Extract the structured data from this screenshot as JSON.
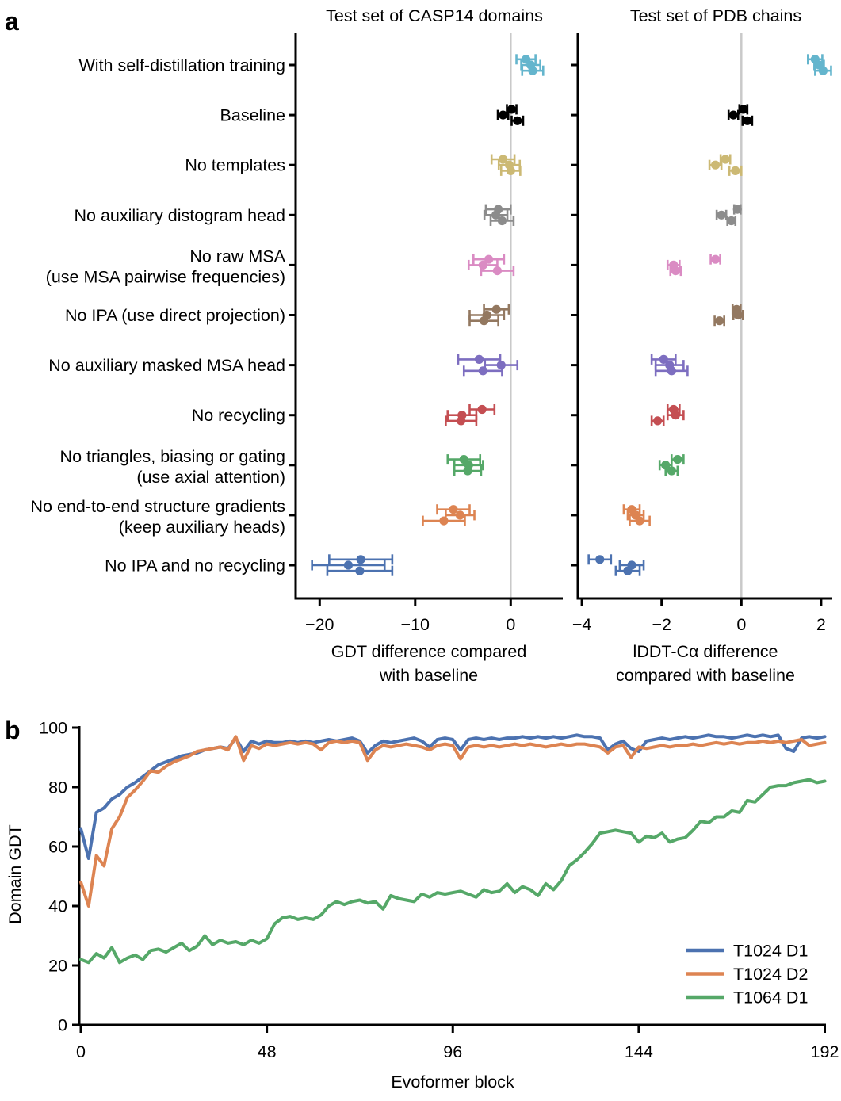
{
  "panels": {
    "a": "a",
    "b": "b"
  },
  "styles": {
    "axis_color": "#000000",
    "zero_line_color": "#c9c9c9",
    "background": "#ffffff"
  },
  "chart_data": [
    {
      "id": "ablation_gdt_casp14",
      "type": "scatter",
      "title": "Test set of CASP14 domains",
      "xlabel": "GDT difference compared with baseline",
      "xlabel_lines": [
        "GDT difference compared",
        "with baseline"
      ],
      "xlim": [
        -22.5,
        5.5
      ],
      "xticks": [
        -20,
        -10,
        0
      ],
      "zero_line": true,
      "seeds_per_row": 3,
      "rows": [
        {
          "label": "With self-distillation training",
          "label_lines": [
            "With self-distillation training"
          ],
          "color": "#64B5CD",
          "values": [
            1.6,
            2.1,
            2.3
          ],
          "errors": [
            1.0,
            1.0,
            1.1
          ]
        },
        {
          "label": "Baseline",
          "label_lines": [
            "Baseline"
          ],
          "color": "#000000",
          "values": [
            0.1,
            -0.8,
            0.7
          ],
          "errors": [
            0.5,
            0.55,
            0.6
          ]
        },
        {
          "label": "No templates",
          "label_lines": [
            "No templates"
          ],
          "color": "#CCB974",
          "values": [
            -0.8,
            -0.15,
            0.0
          ],
          "errors": [
            1.2,
            1.1,
            1.0
          ]
        },
        {
          "label": "No auxiliary distogram head",
          "label_lines": [
            "No auxiliary distogram head"
          ],
          "color": "#8C8C8C",
          "values": [
            -1.3,
            -1.55,
            -0.9
          ],
          "errors": [
            1.3,
            1.2,
            1.2
          ]
        },
        {
          "label": "No raw MSA (use MSA pairwise frequencies)",
          "label_lines": [
            "No raw MSA",
            "(use MSA pairwise frequencies)"
          ],
          "color": "#DA8BC3",
          "values": [
            -2.3,
            -2.9,
            -1.4
          ],
          "errors": [
            1.6,
            1.5,
            1.7
          ]
        },
        {
          "label": "No IPA (use direct projection)",
          "label_lines": [
            "No IPA (use direct projection)"
          ],
          "color": "#937860",
          "values": [
            -1.5,
            -2.5,
            -2.8
          ],
          "errors": [
            1.3,
            1.8,
            1.5
          ]
        },
        {
          "label": "No auxiliary masked MSA head",
          "label_lines": [
            "No auxiliary masked MSA head"
          ],
          "color": "#7D6EC0",
          "values": [
            -3.3,
            -1.0,
            -2.9
          ],
          "errors": [
            2.2,
            1.7,
            2.0
          ]
        },
        {
          "label": "No recycling",
          "label_lines": [
            "No recycling"
          ],
          "color": "#C44E52",
          "values": [
            -3.0,
            -5.1,
            -5.2
          ],
          "errors": [
            1.3,
            1.5,
            1.6
          ]
        },
        {
          "label": "No triangles, biasing or gating (use axial attention)",
          "label_lines": [
            "No triangles, biasing or gating",
            "(use axial attention)"
          ],
          "color": "#55A868",
          "values": [
            -4.9,
            -4.4,
            -4.5
          ],
          "errors": [
            1.7,
            1.5,
            1.4
          ]
        },
        {
          "label": "No end-to-end structure gradients (keep auxiliary heads)",
          "label_lines": [
            "No end-to-end structure gradients",
            "(keep auxiliary heads)"
          ],
          "color": "#DD8452",
          "values": [
            -6.0,
            -5.3,
            -7.0
          ],
          "errors": [
            1.7,
            1.5,
            2.2
          ]
        },
        {
          "label": "No IPA and no recycling",
          "label_lines": [
            "No IPA and no recycling"
          ],
          "color": "#4C72B0",
          "values": [
            -15.7,
            -17.0,
            -15.8
          ],
          "errors": [
            3.3,
            3.8,
            3.4
          ]
        }
      ]
    },
    {
      "id": "ablation_lddt_pdb",
      "type": "scatter",
      "title": "Test set of PDB chains",
      "xlabel": "lDDT-Cα difference compared with baseline",
      "xlabel_lines": [
        "lDDT-Cα difference",
        "compared with baseline"
      ],
      "xlim": [
        -4.45,
        2.3
      ],
      "xticks": [
        -4,
        -2,
        0,
        2
      ],
      "zero_line": true,
      "seeds_per_row": 3,
      "rows": [
        {
          "label": "With self-distillation training",
          "color": "#64B5CD",
          "values": [
            1.85,
            1.95,
            2.05
          ],
          "errors": [
            0.18,
            0.12,
            0.2
          ]
        },
        {
          "label": "Baseline",
          "color": "#000000",
          "values": [
            0.05,
            -0.2,
            0.15
          ],
          "errors": [
            0.1,
            0.12,
            0.12
          ]
        },
        {
          "label": "No templates",
          "color": "#CCB974",
          "values": [
            -0.4,
            -0.65,
            -0.15
          ],
          "errors": [
            0.12,
            0.15,
            0.15
          ]
        },
        {
          "label": "No auxiliary distogram head",
          "color": "#8C8C8C",
          "values": [
            -0.1,
            -0.5,
            -0.25
          ],
          "errors": [
            0.08,
            0.12,
            0.1
          ]
        },
        {
          "label": "No raw MSA (use MSA pairwise frequencies)",
          "color": "#DA8BC3",
          "values": [
            -0.65,
            -1.7,
            -1.65
          ],
          "errors": [
            0.12,
            0.15,
            0.13
          ]
        },
        {
          "label": "No IPA (use direct projection)",
          "color": "#937860",
          "values": [
            -0.12,
            -0.08,
            -0.55
          ],
          "errors": [
            0.1,
            0.12,
            0.12
          ]
        },
        {
          "label": "No auxiliary masked MSA head",
          "color": "#7D6EC0",
          "values": [
            -1.95,
            -1.8,
            -1.75
          ],
          "errors": [
            0.3,
            0.35,
            0.4
          ]
        },
        {
          "label": "No recycling",
          "color": "#C44E52",
          "values": [
            -1.7,
            -1.65,
            -2.1
          ],
          "errors": [
            0.15,
            0.2,
            0.15
          ]
        },
        {
          "label": "No triangles, biasing or gating (use axial attention)",
          "color": "#55A868",
          "values": [
            -1.6,
            -1.9,
            -1.75
          ],
          "errors": [
            0.15,
            0.15,
            0.15
          ]
        },
        {
          "label": "No end-to-end structure gradients (keep auxiliary heads)",
          "color": "#DD8452",
          "values": [
            -2.75,
            -2.65,
            -2.55
          ],
          "errors": [
            0.2,
            0.2,
            0.25
          ]
        },
        {
          "label": "No IPA and no recycling",
          "color": "#4C72B0",
          "values": [
            -3.55,
            -2.75,
            -2.85
          ],
          "errors": [
            0.28,
            0.3,
            0.3
          ]
        }
      ]
    },
    {
      "id": "evoformer_trajectory",
      "type": "line",
      "xlabel": "Evoformer block",
      "ylabel": "Domain GDT",
      "xlim": [
        0,
        192
      ],
      "ylim": [
        0,
        100
      ],
      "xticks": [
        0,
        48,
        96,
        144,
        192
      ],
      "yticks": [
        0,
        20,
        40,
        60,
        80,
        100
      ],
      "legend_position": "lower right",
      "x_start": 0,
      "x_step": 2,
      "series": [
        {
          "name": "T1024 D1",
          "color": "#4C72B0",
          "values": [
            66,
            56,
            71.5,
            73,
            76,
            77.5,
            80,
            81.5,
            83.5,
            85.5,
            87.5,
            88.5,
            89.5,
            90.5,
            91,
            91.5,
            92.5,
            93,
            93.5,
            93,
            96.5,
            92,
            95.5,
            94.5,
            95.5,
            95,
            95,
            95.5,
            95,
            95.5,
            95,
            95.5,
            96,
            95.5,
            96,
            96.5,
            95.5,
            91.5,
            94,
            95.5,
            95,
            95.5,
            96,
            96.5,
            95.5,
            93.5,
            96,
            96.5,
            96,
            92.5,
            96,
            96.5,
            96,
            96.5,
            96,
            96.5,
            96.5,
            97,
            96.5,
            97,
            96.5,
            97,
            96.5,
            97,
            97.5,
            97,
            97,
            96.5,
            92.5,
            94.5,
            95.5,
            93,
            92,
            95.5,
            96,
            96.5,
            96,
            96.5,
            97,
            96.5,
            97,
            97.5,
            97,
            97,
            96.5,
            97,
            97.5,
            97,
            97.5,
            97,
            97.5,
            93,
            92,
            96.5,
            97,
            96.5,
            97
          ]
        },
        {
          "name": "T1024 D2",
          "color": "#DD8452",
          "values": [
            48,
            40,
            57,
            53.5,
            66,
            70,
            76.5,
            79,
            82,
            85.5,
            85,
            87,
            88.5,
            89.5,
            90.5,
            92,
            92.5,
            93,
            93.5,
            92.5,
            97,
            89,
            94,
            93,
            94.5,
            94,
            94.5,
            95,
            94.5,
            95,
            94.5,
            92.5,
            95,
            95.5,
            95,
            95.5,
            95,
            89,
            92.5,
            94,
            93.5,
            94,
            94.5,
            94,
            93.5,
            92.5,
            94,
            94.5,
            94,
            89.5,
            93.5,
            94,
            93.5,
            94,
            93.5,
            94,
            94.5,
            94,
            94.5,
            94,
            93.5,
            94,
            94.5,
            94,
            94.5,
            94.5,
            94,
            93.5,
            91.5,
            93.5,
            94,
            90,
            93.5,
            93,
            93.5,
            94,
            93.5,
            94,
            94,
            94.5,
            94,
            94.5,
            95,
            94.5,
            95,
            94.5,
            95,
            95,
            95.5,
            95,
            95.5,
            95,
            95.5,
            96,
            94,
            94.5,
            95
          ]
        },
        {
          "name": "T1064 D1",
          "color": "#55A868",
          "values": [
            22,
            21,
            24,
            22.5,
            26,
            21,
            22.5,
            23.5,
            22,
            25,
            25.5,
            24.5,
            26,
            27.5,
            25,
            26.5,
            30,
            27,
            28.5,
            27.5,
            28,
            27,
            28.5,
            27.5,
            29,
            34,
            36,
            36.5,
            35.5,
            36,
            35.5,
            37,
            40,
            41.5,
            40.5,
            41.5,
            42,
            41,
            41.5,
            39,
            43.5,
            42.5,
            42,
            41.5,
            44,
            43,
            44.5,
            44,
            44.5,
            45,
            44,
            43,
            45.5,
            44.5,
            45,
            47.5,
            44.5,
            46.5,
            45.5,
            43.5,
            47.5,
            45.5,
            48.5,
            53.5,
            55.5,
            58,
            61,
            64.5,
            65,
            65.5,
            65,
            64.5,
            61.5,
            63.5,
            63,
            64.5,
            61.5,
            62.5,
            63,
            65.5,
            68.5,
            68,
            70,
            70,
            72,
            71.5,
            75.5,
            75,
            77.5,
            80,
            80.5,
            80.5,
            81.5,
            82,
            82.5,
            81.5,
            82
          ]
        }
      ]
    }
  ]
}
